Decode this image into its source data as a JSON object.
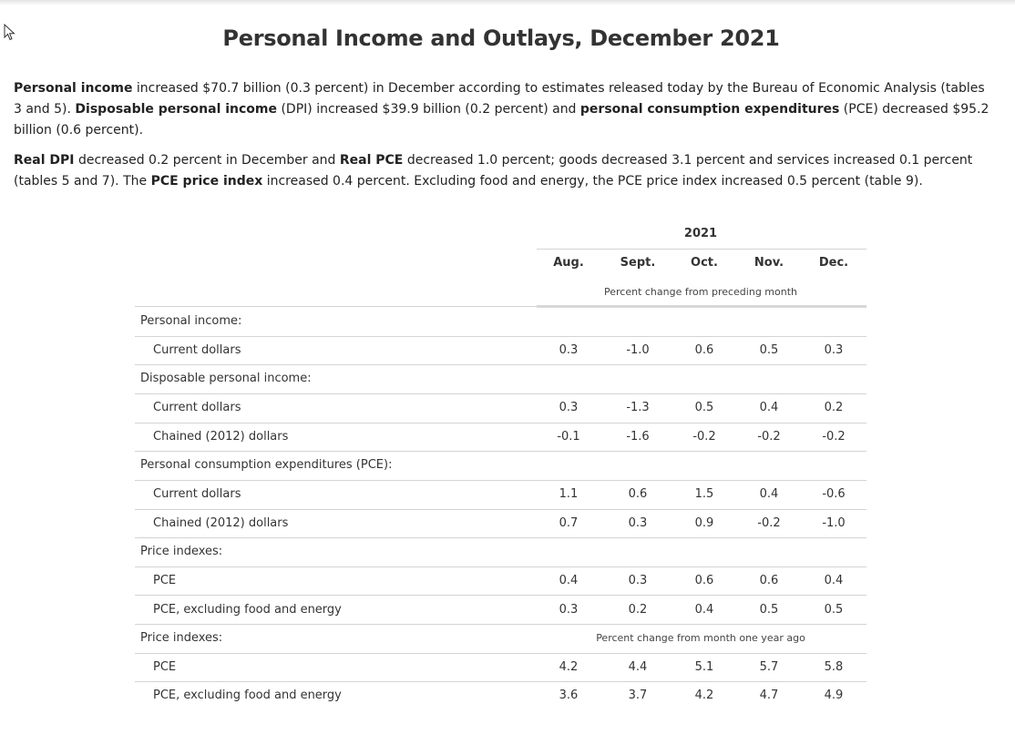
{
  "title": "Personal Income and Outlays, December 2021",
  "para1": [
    {
      "t": "Personal income",
      "b": true
    },
    {
      "t": " increased $70.7 billion (0.3 percent) in December according to estimates released today by the Bureau of Economic Analysis (tables 3 and 5). ",
      "b": false
    },
    {
      "t": "Disposable personal income",
      "b": true
    },
    {
      "t": " (DPI) increased $39.9 billion (0.2 percent) and ",
      "b": false
    },
    {
      "t": "personal consumption expenditures",
      "b": true
    },
    {
      "t": " (PCE) decreased $95.2 billion (0.6 percent).",
      "b": false
    }
  ],
  "para2": [
    {
      "t": "Real DPI",
      "b": true
    },
    {
      "t": " decreased 0.2 percent in December and ",
      "b": false
    },
    {
      "t": "Real PCE",
      "b": true
    },
    {
      "t": " decreased 1.0 percent; goods decreased 3.1 percent and services increased 0.1 percent (tables 5 and 7). The ",
      "b": false
    },
    {
      "t": "PCE price index",
      "b": true
    },
    {
      "t": " increased 0.4 percent. Excluding food and energy, the PCE price index increased 0.5 percent (table 9).",
      "b": false
    }
  ],
  "table": {
    "year": "2021",
    "months": [
      "Aug.",
      "Sept.",
      "Oct.",
      "Nov.",
      "Dec."
    ],
    "subheader1": "Percent change from preceding month",
    "subheader2": "Percent change from month one year ago",
    "rows": [
      {
        "label": "Personal income:",
        "indent": false,
        "values": []
      },
      {
        "label": "Current dollars",
        "indent": true,
        "values": [
          "0.3",
          "-1.0",
          "0.6",
          "0.5",
          "0.3"
        ]
      },
      {
        "label": "Disposable personal income:",
        "indent": false,
        "values": []
      },
      {
        "label": "Current dollars",
        "indent": true,
        "values": [
          "0.3",
          "-1.3",
          "0.5",
          "0.4",
          "0.2"
        ]
      },
      {
        "label": "Chained (2012) dollars",
        "indent": true,
        "values": [
          "-0.1",
          "-1.6",
          "-0.2",
          "-0.2",
          "-0.2"
        ]
      },
      {
        "label": "Personal consumption expenditures (PCE):",
        "indent": false,
        "values": []
      },
      {
        "label": "Current dollars",
        "indent": true,
        "values": [
          "1.1",
          "0.6",
          "1.5",
          "0.4",
          "-0.6"
        ]
      },
      {
        "label": "Chained (2012) dollars",
        "indent": true,
        "values": [
          "0.7",
          "0.3",
          "0.9",
          "-0.2",
          "-1.0"
        ]
      },
      {
        "label": "Price indexes:",
        "indent": false,
        "values": []
      },
      {
        "label": "PCE",
        "indent": true,
        "values": [
          "0.4",
          "0.3",
          "0.6",
          "0.6",
          "0.4"
        ]
      },
      {
        "label": "PCE, excluding food and energy",
        "indent": true,
        "values": [
          "0.3",
          "0.2",
          "0.4",
          "0.5",
          "0.5"
        ]
      },
      {
        "label": "Price indexes:",
        "indent": false,
        "values": [],
        "subheader": true
      },
      {
        "label": "PCE",
        "indent": true,
        "values": [
          "4.2",
          "4.4",
          "5.1",
          "5.7",
          "5.8"
        ]
      },
      {
        "label": "PCE, excluding food and energy",
        "indent": true,
        "values": [
          "3.6",
          "3.7",
          "4.2",
          "4.7",
          "4.9"
        ]
      }
    ]
  }
}
